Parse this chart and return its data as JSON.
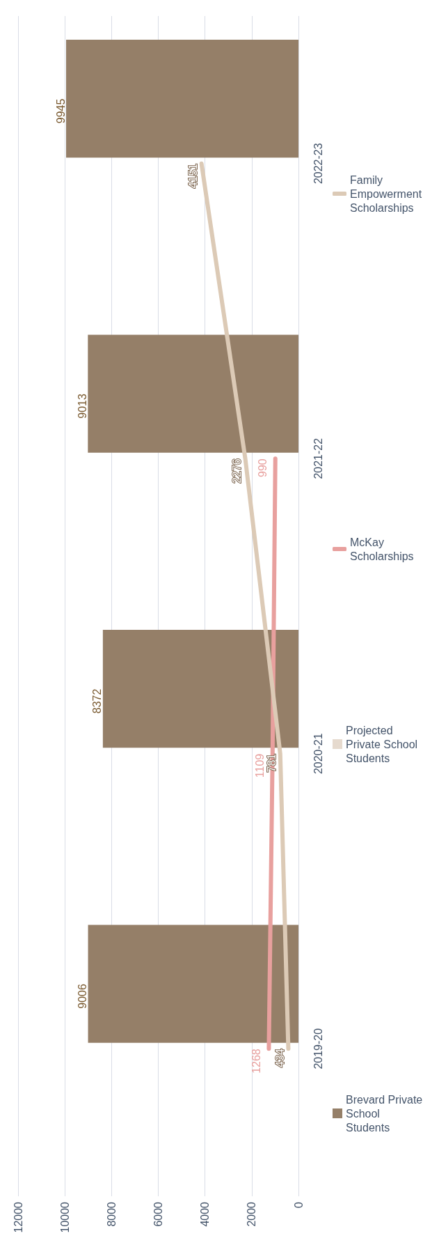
{
  "chart_data": {
    "type": "bar",
    "orientation": "horizontal",
    "categories": [
      "2022-23",
      "2021-22",
      "2020-21",
      "2019-20"
    ],
    "series": [
      {
        "name": "Brevard Private School Students",
        "color": "#957f68",
        "values": [
          9945,
          9013,
          8372,
          9006
        ]
      },
      {
        "name": "Projected Private School Students",
        "color": "#e6dace",
        "values": [
          null,
          null,
          null,
          null
        ]
      },
      {
        "name": "McKay Scholarships",
        "type": "line",
        "color": "#e8a09e",
        "values": [
          null,
          990,
          1109,
          1268
        ]
      },
      {
        "name": "Family Empowerment Scholarships",
        "type": "line",
        "color": "#dccab6",
        "values": [
          4151,
          2276,
          781,
          434
        ]
      }
    ],
    "xlim": [
      12000,
      0
    ],
    "xticks": [
      12000,
      10000,
      8000,
      6000,
      4000,
      2000,
      0
    ],
    "grid": "x",
    "legend": "right",
    "data_labels": true,
    "marker": "none"
  }
}
